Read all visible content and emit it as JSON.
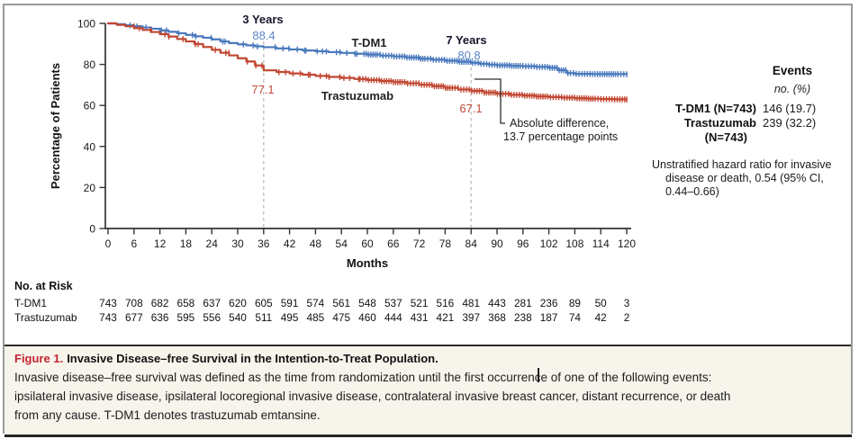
{
  "figure": {
    "caption_label": "Figure 1.",
    "caption_title": "Invasive Disease–free Survival in the Intention-to-Treat Population.",
    "caption_lines": [
      "Invasive disease–free survival was defined as the time from randomization until the first occurrence of one of the following events:",
      "ipsilateral invasive disease, ipsilateral locoregional invasive disease, contralateral invasive breast cancer, distant recurrence, or death",
      "from any cause. T-DM1 denotes trastuzumab emtansine."
    ]
  },
  "chart_data": {
    "type": "line",
    "subtype": "kaplan-meier-step",
    "title": "",
    "xlabel": "Months",
    "ylabel": "Percentage of Patients",
    "xlim": [
      0,
      120
    ],
    "ylim": [
      0,
      100
    ],
    "x_ticks": [
      0,
      6,
      12,
      18,
      24,
      30,
      36,
      42,
      48,
      54,
      60,
      66,
      72,
      78,
      84,
      90,
      96,
      102,
      108,
      114,
      120
    ],
    "y_ticks": [
      0,
      20,
      40,
      60,
      80,
      100
    ],
    "grid": false,
    "series": [
      {
        "name": "T-DM1",
        "color": "#4879bd",
        "points": [
          [
            0,
            100
          ],
          [
            2,
            99.6
          ],
          [
            4,
            99.1
          ],
          [
            6,
            98.6
          ],
          [
            8,
            98
          ],
          [
            10,
            97.4
          ],
          [
            12,
            96.6
          ],
          [
            14,
            95.9
          ],
          [
            16,
            95.2
          ],
          [
            18,
            94.4
          ],
          [
            20,
            93.7
          ],
          [
            22,
            93
          ],
          [
            24,
            92.2
          ],
          [
            26,
            91.2
          ],
          [
            28,
            90.4
          ],
          [
            30,
            89.8
          ],
          [
            32,
            89.3
          ],
          [
            34,
            88.8
          ],
          [
            36,
            88.4
          ],
          [
            39,
            87.8
          ],
          [
            42,
            87.3
          ],
          [
            45,
            86.8
          ],
          [
            48,
            86.4
          ],
          [
            51,
            86
          ],
          [
            54,
            85.6
          ],
          [
            57,
            85.2
          ],
          [
            60,
            84.8
          ],
          [
            63,
            84.3
          ],
          [
            66,
            83.9
          ],
          [
            69,
            83.4
          ],
          [
            72,
            82.8
          ],
          [
            75,
            82.3
          ],
          [
            78,
            81.8
          ],
          [
            81,
            81.3
          ],
          [
            84,
            80.8
          ],
          [
            86,
            80.3
          ],
          [
            88,
            79.9
          ],
          [
            90,
            79.6
          ],
          [
            93,
            79.3
          ],
          [
            96,
            79.1
          ],
          [
            99,
            78.8
          ],
          [
            102,
            78.4
          ],
          [
            104,
            77.2
          ],
          [
            106,
            75.8
          ],
          [
            108,
            75.4
          ],
          [
            112,
            75.3
          ],
          [
            120,
            75.2
          ]
        ]
      },
      {
        "name": "Trastuzumab",
        "color": "#c14631",
        "points": [
          [
            0,
            100
          ],
          [
            2,
            99.3
          ],
          [
            4,
            98.6
          ],
          [
            6,
            97.7
          ],
          [
            8,
            96.8
          ],
          [
            10,
            95.8
          ],
          [
            12,
            94.7
          ],
          [
            14,
            93.6
          ],
          [
            16,
            92.4
          ],
          [
            18,
            91.2
          ],
          [
            20,
            89.9
          ],
          [
            22,
            88.5
          ],
          [
            24,
            87.1
          ],
          [
            26,
            85.7
          ],
          [
            28,
            84.4
          ],
          [
            30,
            83
          ],
          [
            32,
            81.4
          ],
          [
            34,
            79.5
          ],
          [
            36,
            77.1
          ],
          [
            39,
            76.3
          ],
          [
            42,
            75.6
          ],
          [
            45,
            75
          ],
          [
            48,
            74.4
          ],
          [
            51,
            73.9
          ],
          [
            54,
            73.4
          ],
          [
            57,
            72.9
          ],
          [
            60,
            72.4
          ],
          [
            63,
            71.9
          ],
          [
            66,
            71.4
          ],
          [
            69,
            70.8
          ],
          [
            72,
            70.1
          ],
          [
            75,
            69.4
          ],
          [
            78,
            68.6
          ],
          [
            81,
            67.8
          ],
          [
            84,
            67.1
          ],
          [
            87,
            66.3
          ],
          [
            90,
            65.7
          ],
          [
            93,
            65.2
          ],
          [
            96,
            64.8
          ],
          [
            99,
            64.4
          ],
          [
            102,
            64.1
          ],
          [
            105,
            63.8
          ],
          [
            108,
            63.5
          ],
          [
            111,
            63.3
          ],
          [
            114,
            63.1
          ],
          [
            117,
            63
          ],
          [
            120,
            62.9
          ]
        ]
      }
    ],
    "annotations": {
      "milestones": [
        {
          "label": "3 Years",
          "month": 36,
          "tdm1": "88.4",
          "trastuzumab": "77.1"
        },
        {
          "label": "7 Years",
          "month": 84,
          "tdm1": "80.8",
          "trastuzumab": "67.1"
        }
      ],
      "abs_diff_line1": "Absolute difference,",
      "abs_diff_line2": "13.7 percentage points"
    },
    "at_risk": {
      "header": "No. at Risk",
      "rows": [
        {
          "name": "T-DM1",
          "values": [
            743,
            708,
            682,
            658,
            637,
            620,
            605,
            591,
            574,
            561,
            548,
            537,
            521,
            516,
            481,
            443,
            281,
            236,
            89,
            50,
            3
          ]
        },
        {
          "name": "Trastuzumab",
          "values": [
            743,
            677,
            636,
            595,
            556,
            540,
            511,
            495,
            485,
            475,
            460,
            444,
            431,
            421,
            397,
            368,
            238,
            187,
            74,
            42,
            2
          ]
        }
      ]
    },
    "legend_position": "on-curve-labels"
  },
  "side_panel": {
    "events_header": "Events",
    "events_unit": "no. (%)",
    "rows": [
      {
        "name": "T-DM1 (N=743)",
        "name2": "",
        "value": "146 (19.7)"
      },
      {
        "name": "Trastuzumab",
        "name2": "(N=743)",
        "value": "239 (32.2)"
      }
    ],
    "hazard_lines": [
      "Unstratified hazard ratio for invasive",
      "disease or death, 0.54 (95% CI,",
      "0.44–0.66)"
    ]
  },
  "colors": {
    "tdm1": "#4879bd",
    "trastuzumab": "#c14631",
    "dashed": "#bcbcbc",
    "axis": "#333333",
    "figure_label_red": "#c32531",
    "caption_bg": "#f7f4ec",
    "border_gray": "#9a9a9a",
    "border_dark": "#2b2b2b"
  }
}
